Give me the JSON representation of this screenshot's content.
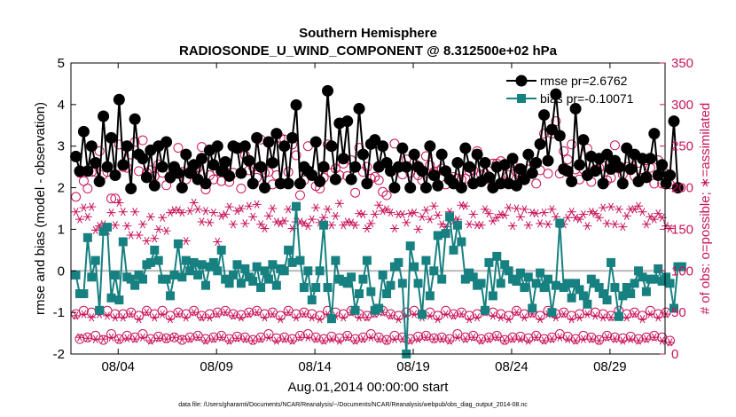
{
  "chart_data": {
    "type": "line",
    "title": "Southern Hemisphere",
    "subtitle": "RADIOSONDE_U_WIND_COMPONENT @ 8.312500e+02 hPa",
    "xlabel": "Aug.01,2014 00:00:00 start",
    "ylabel": "rmse and bias (model - observation)",
    "y2label": "# of obs: o=possible; ∗=assimilated",
    "footnote": "data file: /Users/gharamti/Documents/NCAR/Reanalysis/~/Documents/NCAR/Reanalysis/webpub/obs_diag_output_2014-08.nc",
    "xlim": [
      1.6,
      31.8
    ],
    "ylim": [
      -2,
      5
    ],
    "y2lim": [
      0,
      350
    ],
    "x_ticks": [
      4,
      9,
      14,
      19,
      24,
      29
    ],
    "x_tick_labels": [
      "08/04",
      "08/09",
      "08/14",
      "08/19",
      "08/24",
      "08/29"
    ],
    "y_ticks": [
      -2,
      -1,
      0,
      1,
      2,
      3,
      4,
      5
    ],
    "y_tick_labels": [
      "-2",
      "-1",
      "0",
      "1",
      "2",
      "3",
      "4",
      "5"
    ],
    "y2_ticks": [
      0,
      50,
      100,
      150,
      200,
      250,
      300,
      350
    ],
    "y2_tick_labels": [
      "0",
      "50",
      "100",
      "150",
      "200",
      "250",
      "300",
      "350"
    ],
    "zero_line": 0,
    "series": [
      {
        "name": "rmse pr=2.6762",
        "color": "#000000",
        "marker": "circle",
        "axis": "left",
        "values": [
          2.75,
          2.4,
          3.35,
          2.4,
          3.0,
          2.6,
          2.15,
          3.72,
          2.5,
          3.2,
          2.3,
          4.12,
          2.55,
          3.0,
          1.98,
          3.65,
          2.8,
          2.7,
          2.25,
          2.9,
          2.05,
          3.0,
          2.5,
          3.1,
          2.25,
          2.5,
          2.35,
          2.0,
          2.8,
          2.35,
          2.55,
          2.2,
          2.7,
          2.1,
          2.9,
          2.55,
          3.0,
          2.4,
          2.62,
          2.28,
          3.0,
          2.95,
          2.35,
          3.0,
          2.65,
          2.1,
          3.2,
          2.5,
          2.0,
          3.1,
          2.6,
          3.3,
          2.1,
          3.0,
          2.1,
          3.2,
          3.99,
          2.1,
          2.5,
          2.4,
          2.3,
          3.1,
          2.15,
          2.5,
          4.33,
          3.0,
          2.2,
          3.55,
          2.7,
          3.6,
          2.2,
          2.5,
          3.9,
          2.8,
          2.1,
          3.05,
          3.15,
          2.5,
          3.0,
          2.6,
          2.4,
          2.0,
          2.5,
          2.95,
          2.5,
          2.0,
          2.8,
          2.5,
          2.4,
          2.0,
          3.0,
          2.3,
          2.05,
          2.8,
          2.4,
          2.2,
          2.1,
          2.6,
          2.0,
          2.95,
          2.5,
          2.1,
          2.8,
          2.15,
          2.6,
          2.25,
          2.0,
          2.5,
          2.1,
          2.55,
          2.1,
          2.7,
          2.05,
          2.45,
          2.2,
          2.8,
          2.35,
          2.6,
          3.05,
          3.75,
          2.65,
          3.4,
          4.25,
          3.25,
          2.45,
          2.4,
          2.15,
          3.9,
          2.55,
          3.15,
          2.3,
          2.75,
          2.4,
          2.7,
          2.1,
          2.8,
          2.45,
          2.65,
          2.5,
          2.1,
          2.95,
          2.45,
          2.8,
          2.15,
          2.7,
          2.25,
          2.7,
          3.3,
          2.3,
          2.55,
          2.1,
          2.3,
          3.6,
          2.0
        ]
      },
      {
        "name": "bias pr=-0.10071",
        "color": "#178080",
        "marker": "square",
        "axis": "left",
        "values": [
          -0.1,
          -0.55,
          -0.55,
          0.8,
          -0.15,
          0.25,
          -0.95,
          0.95,
          1.05,
          -0.65,
          -0.1,
          -0.7,
          0.7,
          -0.15,
          -0.2,
          -0.35,
          -0.1,
          -0.2,
          0.15,
          0.2,
          0.5,
          0.25,
          -0.2,
          -0.2,
          -0.6,
          -0.1,
          0.65,
          -0.15,
          0.25,
          0.0,
          0.2,
          -0.1,
          0.15,
          -0.35,
          0.1,
          0.2,
          0.0,
          0.5,
          -0.2,
          -0.3,
          -0.1,
          0.15,
          -0.3,
          0.05,
          -0.15,
          -0.25,
          0.1,
          -0.4,
          0.0,
          -0.2,
          0.15,
          -0.35,
          0.05,
          0.0,
          0.5,
          0.2,
          1.55,
          0.25,
          -0.4,
          0.0,
          -0.7,
          -0.4,
          0.0,
          1.1,
          -0.4,
          -1.15,
          0.25,
          -0.2,
          -0.25,
          -0.3,
          -0.15,
          -0.95,
          -0.55,
          -0.2,
          0.25,
          -0.5,
          -0.95,
          -0.9,
          -0.1,
          -0.55,
          -0.35,
          0.1,
          0.2,
          -0.3,
          -2.0,
          0.6,
          0.1,
          -0.3,
          -1.05,
          0.25,
          -0.6,
          0.0,
          0.85,
          -0.2,
          0.9,
          1.3,
          0.5,
          1.1,
          0.7,
          -0.2,
          -0.05,
          -0.15,
          -0.35,
          -0.3,
          -0.95,
          0.2,
          -0.6,
          0.35,
          -0.3,
          0.15,
          0.0,
          -0.2,
          -0.25,
          -0.05,
          -0.4,
          -0.15,
          -0.9,
          -0.3,
          -0.05,
          -0.4,
          -0.2,
          -1.0,
          -0.35,
          1.15,
          -0.4,
          -0.3,
          -0.65,
          -0.3,
          -0.45,
          -0.6,
          -0.8,
          -0.2,
          -0.3,
          -0.4,
          -0.55,
          -0.7,
          0.2,
          -0.4,
          -1.1,
          -0.6,
          -0.4,
          -0.55,
          -0.3,
          0.0,
          -0.15,
          -0.5,
          -0.2,
          -0.2,
          0.05,
          -0.25,
          -0.15,
          -0.3,
          -0.9,
          0.1,
          0.1
        ]
      },
      {
        "name": "obs possible (rmse)",
        "color": "#c8145a",
        "marker": "open-circle",
        "axis": "right",
        "values": [
          189,
          218,
          208,
          199,
          219,
          219,
          244,
          216,
          219,
          187,
          187,
          252,
          225,
          224,
          240,
          255,
          220,
          257,
          218,
          221,
          214,
          228,
          218,
          203,
          211,
          219,
          248,
          219,
          210,
          220,
          217,
          224,
          249,
          198,
          215,
          210,
          220,
          208,
          219,
          207,
          218,
          249,
          199,
          239,
          221,
          225,
          212,
          258,
          218,
          219,
          204,
          215,
          260,
          258,
          219,
          252,
          239,
          191,
          209,
          250,
          215,
          202,
          199,
          212,
          252,
          218,
          223,
          215,
          229,
          214,
          233,
          194,
          248,
          219,
          225,
          211,
          213,
          209,
          195,
          191,
          219,
          253,
          224,
          216,
          234,
          218,
          230,
          215,
          209,
          238,
          227,
          219,
          220,
          223,
          204,
          210,
          213,
          211,
          210,
          211,
          220,
          221,
          244,
          216,
          217,
          210,
          229,
          229,
          232,
          207,
          215,
          230,
          219,
          214,
          210,
          222,
          217,
          205,
          221,
          265,
          217,
          265,
          280,
          217,
          244,
          234,
          252,
          222,
          210,
          222,
          247,
          207,
          222,
          224,
          226,
          209,
          212,
          251,
          223,
          216,
          225,
          221,
          214,
          230,
          212,
          233,
          224,
          205,
          233,
          205,
          217,
          204
        ]
      },
      {
        "name": "obs assimilated (rmse)",
        "color": "#c8145a",
        "marker": "asterisk",
        "axis": "right",
        "values": [
          171,
          162,
          176,
          165,
          177,
          149,
          154,
          156,
          148,
          170,
          155,
          182,
          171,
          154,
          143,
          171,
          143,
          156,
          136,
          165,
          139,
          150,
          164,
          148,
          170,
          173,
          173,
          170,
          136,
          172,
          182,
          174,
          159,
          172,
          158,
          170,
          135,
          166,
          168,
          177,
          156,
          172,
          175,
          157,
          178,
          165,
          180,
          156,
          151,
          166,
          175,
          159,
          157,
          160,
          174,
          151,
          159,
          159,
          157,
          154,
          162,
          176,
          158,
          164,
          174,
          155,
          166,
          181,
          155,
          159,
          158,
          155,
          169,
          168,
          151,
          157,
          168,
          179,
          172,
          174,
          170,
          151,
          168,
          168,
          158,
          169,
          170,
          150,
          165,
          173,
          162,
          178,
          167,
          156,
          153,
          171,
          160,
          162,
          179,
          178,
          156,
          168,
          155,
          155,
          174,
          169,
          160,
          164,
          168,
          167,
          176,
          154,
          175,
          165,
          174,
          155,
          170,
          169,
          157,
          170,
          156,
          174,
          165,
          156,
          156,
          164,
          171,
          164,
          162,
          168,
          154,
          171,
          169,
          164,
          176,
          157,
          177,
          156,
          174,
          153,
          166,
          174,
          174,
          178,
          171,
          156,
          165,
          162,
          169,
          164,
          154,
          151
        ]
      },
      {
        "name": "obs possible (bias)",
        "color": "#c8145a",
        "marker": "open-circle",
        "axis": "right",
        "values": [
          48,
          18,
          52,
          20,
          50,
          22,
          52,
          17,
          52,
          24,
          48,
          18,
          48,
          22,
          50,
          20,
          46,
          24,
          52,
          18,
          48,
          21,
          52,
          19,
          46,
          20,
          50,
          17,
          48,
          20,
          52,
          22,
          46,
          18,
          48,
          20,
          50,
          22,
          52,
          18,
          48,
          21,
          47,
          20,
          50,
          17,
          52,
          20,
          48,
          24,
          50,
          19,
          46,
          20,
          52,
          18,
          48,
          22,
          50,
          24,
          48,
          20,
          46,
          18,
          52,
          21,
          50,
          19,
          48,
          22,
          52,
          18,
          48,
          20,
          46,
          24,
          50,
          20,
          52,
          17,
          48,
          22,
          46,
          20,
          50,
          18,
          52,
          21,
          48,
          22,
          50,
          19,
          46,
          20,
          52,
          18,
          48,
          24,
          50,
          20,
          46,
          22,
          48,
          18,
          52,
          20,
          50,
          22,
          48,
          17,
          46,
          20,
          52,
          21,
          48,
          19,
          50,
          22,
          46,
          18,
          52,
          20,
          48,
          24,
          50,
          21,
          46,
          18,
          48,
          22,
          52,
          20,
          50,
          17,
          48,
          22,
          46,
          20,
          52,
          19,
          48,
          21,
          50,
          18,
          46,
          20,
          52,
          22,
          48,
          20,
          50,
          16
        ]
      },
      {
        "name": "obs assimilated (bias)",
        "color": "#c8145a",
        "marker": "asterisk",
        "axis": "right",
        "values": [
          46,
          20,
          48,
          19,
          44,
          18,
          48,
          18,
          46,
          20,
          44,
          17,
          44,
          19,
          48,
          18,
          42,
          20,
          50,
          16,
          44,
          19,
          48,
          18,
          42,
          20,
          48,
          18,
          44,
          18,
          50,
          20,
          44,
          16,
          44,
          18,
          48,
          20,
          50,
          16,
          46,
          19,
          44,
          18,
          48,
          16,
          50,
          18,
          44,
          20,
          48,
          16,
          42,
          18,
          50,
          16,
          44,
          20,
          48,
          20,
          44,
          18,
          42,
          16,
          48,
          18,
          46,
          16,
          44,
          20,
          50,
          16,
          44,
          18,
          44,
          20,
          48,
          18,
          50,
          16,
          46,
          18,
          42,
          18,
          46,
          16,
          48,
          18,
          44,
          20,
          46,
          18,
          42,
          18,
          48,
          16,
          46,
          20,
          48,
          18,
          42,
          20,
          44,
          16,
          50,
          18,
          46,
          20,
          44,
          16,
          42,
          18,
          50,
          18,
          44,
          16,
          48,
          20,
          42,
          16,
          48,
          18,
          44,
          20,
          48,
          18,
          42,
          16,
          44,
          18,
          48,
          18,
          46,
          16,
          44,
          20,
          44,
          18,
          50,
          16,
          44,
          18,
          48,
          16,
          42,
          18,
          48,
          20,
          44,
          16,
          48,
          14
        ]
      }
    ],
    "legend": [
      {
        "label": "rmse pr=2.6762",
        "color": "#000000",
        "marker": "circle"
      },
      {
        "label": "bias pr=-0.10071",
        "color": "#178080",
        "marker": "square"
      }
    ]
  },
  "colors": {
    "left_axis": "#000000",
    "right_axis": "#c8145a",
    "zero_line": "#b8b8b8",
    "rmse": "#000000",
    "bias": "#178080",
    "obs": "#c8145a"
  }
}
